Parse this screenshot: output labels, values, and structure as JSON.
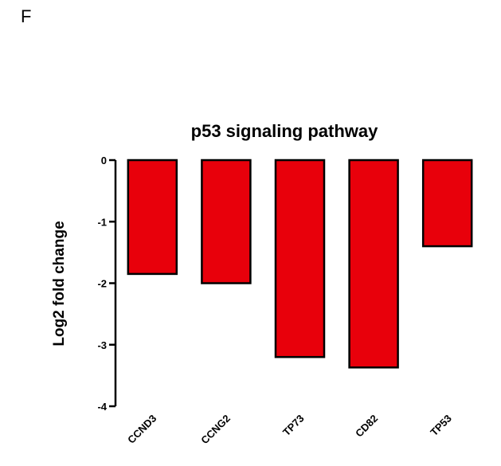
{
  "panel_label": "F",
  "chart_data": {
    "type": "bar",
    "title": "p53 signaling pathway",
    "xlabel": "",
    "ylabel": "Log2 fold change",
    "categories": [
      "CCND3",
      "CCNG2",
      "TP73",
      "CD82",
      "TP53"
    ],
    "values": [
      -1.85,
      -2.0,
      -3.2,
      -3.37,
      -1.4
    ],
    "ylim": [
      -4,
      0
    ],
    "yticks": [
      0,
      -1,
      -2,
      -3,
      -4
    ],
    "bar_color": "#e8000b",
    "grid": false,
    "legend": "none"
  }
}
